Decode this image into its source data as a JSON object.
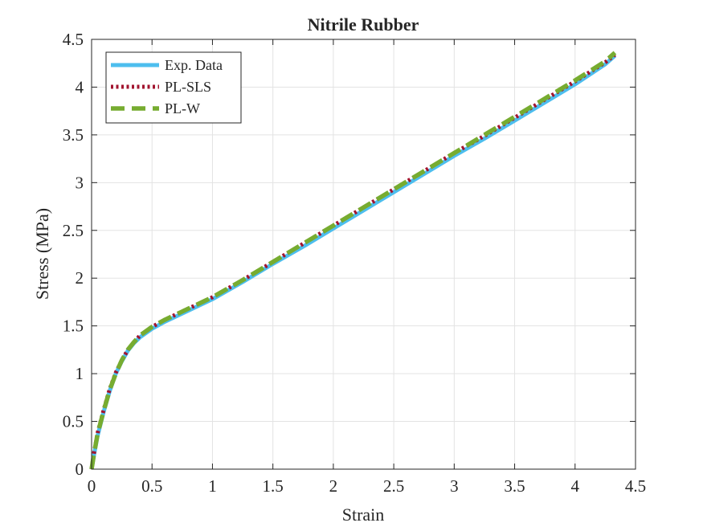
{
  "chart_data": {
    "type": "line",
    "title": "Nitrile Rubber",
    "xlabel": "Strain",
    "ylabel": "Stress (MPa)",
    "xlim": [
      0,
      4.5
    ],
    "ylim": [
      0,
      4.5
    ],
    "xticks": [
      0,
      0.5,
      1,
      1.5,
      2,
      2.5,
      3,
      3.5,
      4,
      4.5
    ],
    "yticks": [
      0,
      0.5,
      1,
      1.5,
      2,
      2.5,
      3,
      3.5,
      4,
      4.5
    ],
    "xtick_labels": [
      "0",
      "0.5",
      "1",
      "1.5",
      "2",
      "2.5",
      "3",
      "3.5",
      "4",
      "4.5"
    ],
    "ytick_labels": [
      "0",
      "0.5",
      "1",
      "1.5",
      "2",
      "2.5",
      "3",
      "3.5",
      "4",
      "4.5"
    ],
    "grid": true,
    "legend_position": "top-left",
    "series": [
      {
        "name": "Exp. Data",
        "color": "#4DBEEE",
        "style": "solid",
        "x": [
          0,
          0.02,
          0.05,
          0.1,
          0.15,
          0.2,
          0.25,
          0.3,
          0.35,
          0.4,
          0.5,
          0.6,
          0.75,
          1.0,
          1.25,
          1.5,
          1.75,
          2.0,
          2.25,
          2.5,
          2.75,
          3.0,
          3.25,
          3.5,
          3.75,
          4.0,
          4.25,
          4.33
        ],
        "y": [
          0,
          0.15,
          0.35,
          0.6,
          0.82,
          1.0,
          1.13,
          1.24,
          1.32,
          1.38,
          1.47,
          1.54,
          1.63,
          1.78,
          1.96,
          2.15,
          2.33,
          2.52,
          2.71,
          2.9,
          3.09,
          3.28,
          3.46,
          3.65,
          3.84,
          4.03,
          4.24,
          4.33
        ]
      },
      {
        "name": "PL-SLS",
        "color": "#A2142F",
        "style": "dotted",
        "x": [
          0,
          0.02,
          0.05,
          0.1,
          0.15,
          0.2,
          0.25,
          0.3,
          0.35,
          0.4,
          0.5,
          0.6,
          0.75,
          1.0,
          1.25,
          1.5,
          1.75,
          2.0,
          2.25,
          2.5,
          2.75,
          3.0,
          3.25,
          3.5,
          3.75,
          4.0,
          4.25,
          4.33
        ],
        "y": [
          0,
          0.17,
          0.38,
          0.62,
          0.84,
          1.01,
          1.14,
          1.25,
          1.33,
          1.4,
          1.49,
          1.56,
          1.65,
          1.8,
          1.98,
          2.17,
          2.36,
          2.55,
          2.74,
          2.93,
          3.12,
          3.31,
          3.49,
          3.68,
          3.87,
          4.06,
          4.26,
          4.34
        ]
      },
      {
        "name": "PL-W",
        "color": "#77AC30",
        "style": "dashed",
        "x": [
          0,
          0.02,
          0.05,
          0.1,
          0.15,
          0.2,
          0.25,
          0.3,
          0.35,
          0.4,
          0.5,
          0.6,
          0.75,
          1.0,
          1.25,
          1.5,
          1.75,
          2.0,
          2.25,
          2.5,
          2.75,
          3.0,
          3.25,
          3.5,
          3.75,
          4.0,
          4.25,
          4.33
        ],
        "y": [
          0,
          0.16,
          0.37,
          0.61,
          0.83,
          1.0,
          1.14,
          1.25,
          1.33,
          1.4,
          1.49,
          1.56,
          1.65,
          1.8,
          1.98,
          2.17,
          2.36,
          2.55,
          2.74,
          2.93,
          3.12,
          3.31,
          3.5,
          3.69,
          3.88,
          4.07,
          4.27,
          4.36
        ]
      }
    ]
  }
}
